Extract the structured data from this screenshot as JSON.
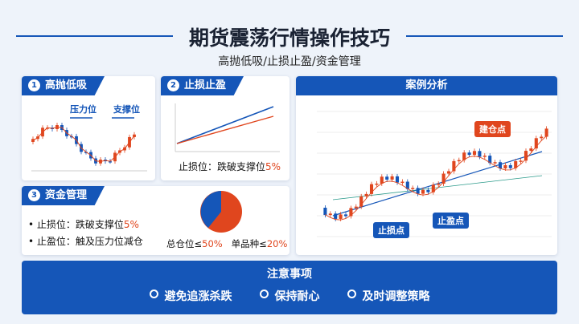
{
  "header": {
    "title": "期货震荡行情操作技巧",
    "subtitle": "高抛低吸/止损止盈/资金管理"
  },
  "panels": [
    {
      "badge": "1",
      "title": "高抛低吸",
      "labels": [
        "压力位",
        "支撑位"
      ]
    },
    {
      "badge": "2",
      "title": "止损止盈",
      "note": [
        "止损位：跌破支撑位",
        "5%"
      ]
    },
    {
      "badge": "3",
      "title": "资金管理",
      "items": [
        [
          "止损位：跌破支撑位",
          "5%"
        ],
        [
          "止盈位：触及压力位减仓"
        ]
      ],
      "pie_labels": [
        [
          "总仓位≤",
          "50%"
        ],
        [
          "单品种≤",
          "20%"
        ]
      ]
    },
    {
      "title": "案例分析",
      "labels": [
        "建仓点",
        "止损点",
        "止盈点"
      ]
    }
  ],
  "footer": {
    "title": "注意事项",
    "items": [
      "避免追涨杀跌",
      "保持耐心",
      "及时调整策略"
    ]
  }
}
